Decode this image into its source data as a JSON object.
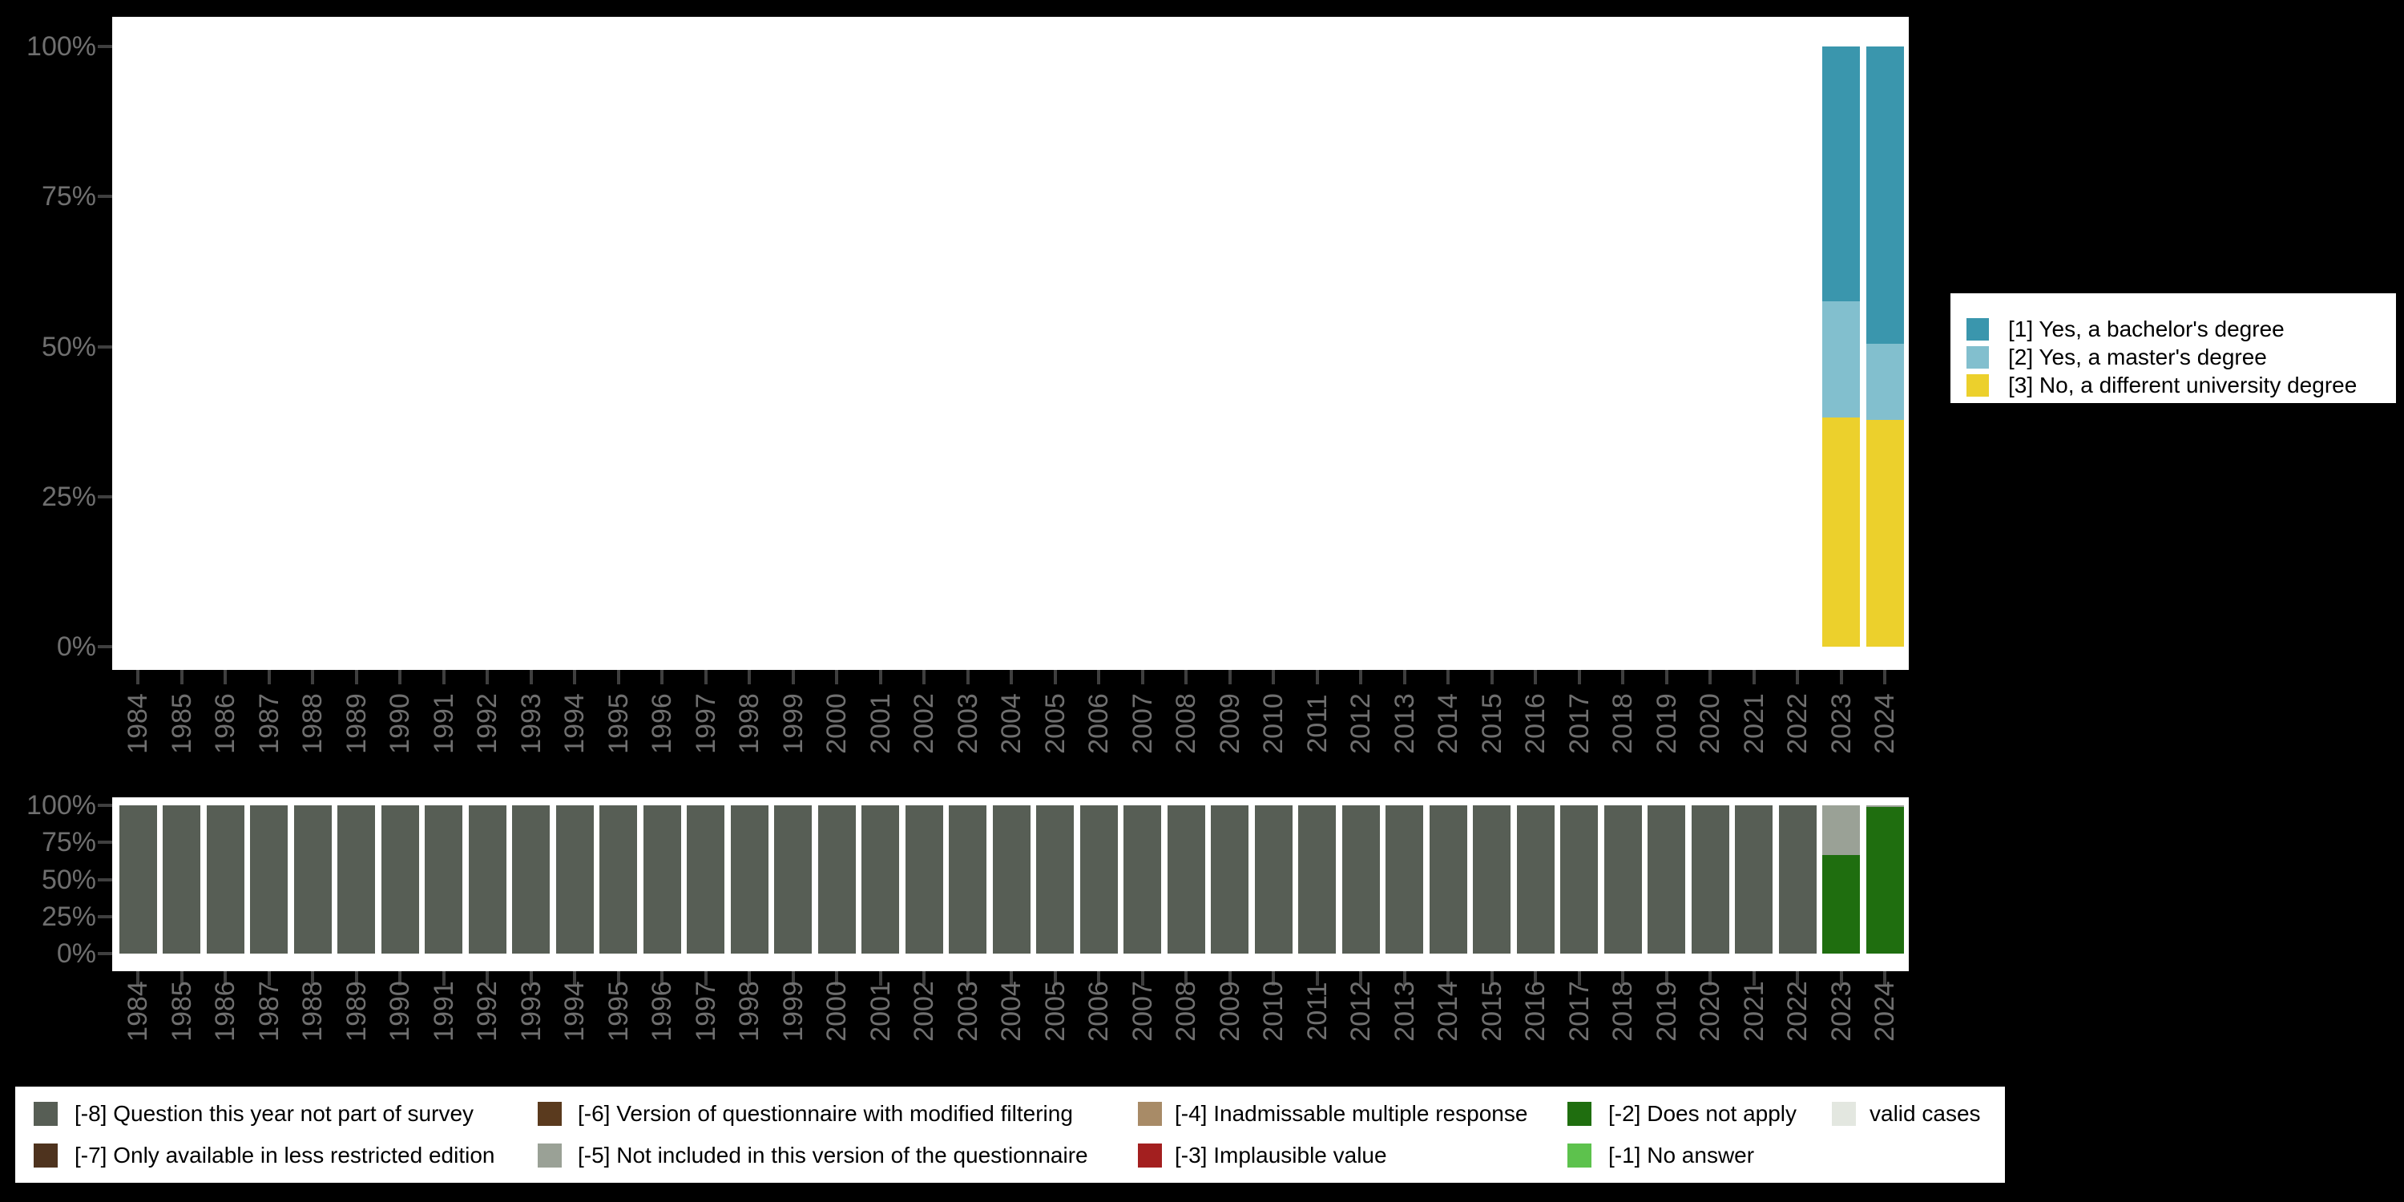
{
  "canvas": {
    "background": "#000000",
    "plot_background": "#ffffff"
  },
  "axis": {
    "tick_label_color": "#6f6f6f",
    "tick_mark_color": "#3f3f3f",
    "x_labels_rotated_degrees": -90
  },
  "chart_data": [
    {
      "id": "answer-distribution",
      "type": "bar",
      "stacked": true,
      "title": "",
      "xlabel": "",
      "ylabel": "",
      "ylim": [
        0,
        100
      ],
      "yticks": [
        "0%",
        "25%",
        "50%",
        "75%",
        "100%"
      ],
      "grid": false,
      "legend_position": "right",
      "categories": [
        "1984",
        "1985",
        "1986",
        "1987",
        "1988",
        "1989",
        "1990",
        "1991",
        "1992",
        "1993",
        "1994",
        "1995",
        "1996",
        "1997",
        "1998",
        "1999",
        "2000",
        "2001",
        "2002",
        "2003",
        "2004",
        "2005",
        "2006",
        "2007",
        "2008",
        "2009",
        "2010",
        "2011",
        "2012",
        "2013",
        "2014",
        "2015",
        "2016",
        "2017",
        "2018",
        "2019",
        "2020",
        "2021",
        "2022",
        "2023",
        "2024"
      ],
      "series": [
        {
          "name": "[1] Yes, a bachelor's degree",
          "color": "#3a96ad",
          "values": [
            0,
            0,
            0,
            0,
            0,
            0,
            0,
            0,
            0,
            0,
            0,
            0,
            0,
            0,
            0,
            0,
            0,
            0,
            0,
            0,
            0,
            0,
            0,
            0,
            0,
            0,
            0,
            0,
            0,
            0,
            0,
            0,
            0,
            0,
            0,
            0,
            0,
            0,
            0,
            42.4,
            49.5
          ]
        },
        {
          "name": "[2] Yes, a master's degree",
          "color": "#82bfce",
          "values": [
            0,
            0,
            0,
            0,
            0,
            0,
            0,
            0,
            0,
            0,
            0,
            0,
            0,
            0,
            0,
            0,
            0,
            0,
            0,
            0,
            0,
            0,
            0,
            0,
            0,
            0,
            0,
            0,
            0,
            0,
            0,
            0,
            0,
            0,
            0,
            0,
            0,
            0,
            0,
            19.4,
            12.7
          ]
        },
        {
          "name": "[3] No, a different university degree",
          "color": "#ecd02c",
          "values": [
            0,
            0,
            0,
            0,
            0,
            0,
            0,
            0,
            0,
            0,
            0,
            0,
            0,
            0,
            0,
            0,
            0,
            0,
            0,
            0,
            0,
            0,
            0,
            0,
            0,
            0,
            0,
            0,
            0,
            0,
            0,
            0,
            0,
            0,
            0,
            0,
            0,
            0,
            0,
            38.2,
            37.8
          ]
        }
      ]
    },
    {
      "id": "missing-values",
      "type": "bar",
      "stacked": true,
      "title": "",
      "xlabel": "",
      "ylabel": "",
      "ylim": [
        0,
        100
      ],
      "yticks": [
        "0%",
        "25%",
        "50%",
        "75%",
        "100%"
      ],
      "grid": false,
      "legend_position": "bottom",
      "categories": [
        "1984",
        "1985",
        "1986",
        "1987",
        "1988",
        "1989",
        "1990",
        "1991",
        "1992",
        "1993",
        "1994",
        "1995",
        "1996",
        "1997",
        "1998",
        "1999",
        "2000",
        "2001",
        "2002",
        "2003",
        "2004",
        "2005",
        "2006",
        "2007",
        "2008",
        "2009",
        "2010",
        "2011",
        "2012",
        "2013",
        "2014",
        "2015",
        "2016",
        "2017",
        "2018",
        "2019",
        "2020",
        "2021",
        "2022",
        "2023",
        "2024"
      ],
      "series": [
        {
          "name": "[-5] Not included in this version of the questionnaire",
          "color": "#9aa196",
          "values": [
            0,
            0,
            0,
            0,
            0,
            0,
            0,
            0,
            0,
            0,
            0,
            0,
            0,
            0,
            0,
            0,
            0,
            0,
            0,
            0,
            0,
            0,
            0,
            0,
            0,
            0,
            0,
            0,
            0,
            0,
            0,
            0,
            0,
            0,
            0,
            0,
            0,
            0,
            0,
            33.7,
            1.1
          ]
        },
        {
          "name": "[-8] Question this year not part of survey",
          "color": "#575e55",
          "values": [
            100,
            100,
            100,
            100,
            100,
            100,
            100,
            100,
            100,
            100,
            100,
            100,
            100,
            100,
            100,
            100,
            100,
            100,
            100,
            100,
            100,
            100,
            100,
            100,
            100,
            100,
            100,
            100,
            100,
            100,
            100,
            100,
            100,
            100,
            100,
            100,
            100,
            100,
            100,
            0,
            0
          ]
        },
        {
          "name": "[-2] Does not apply",
          "color": "#1f6e0f",
          "values": [
            0,
            0,
            0,
            0,
            0,
            0,
            0,
            0,
            0,
            0,
            0,
            0,
            0,
            0,
            0,
            0,
            0,
            0,
            0,
            0,
            0,
            0,
            0,
            0,
            0,
            0,
            0,
            0,
            0,
            0,
            0,
            0,
            0,
            0,
            0,
            0,
            0,
            0,
            0,
            66.3,
            98.9
          ]
        }
      ]
    }
  ],
  "legend_top": {
    "items": [
      {
        "label": "[1] Yes, a bachelor's degree",
        "color": "#3a96ad"
      },
      {
        "label": "[2] Yes, a master's degree",
        "color": "#82bfce"
      },
      {
        "label": "[3] No, a different university degree",
        "color": "#ecd02c"
      }
    ]
  },
  "legend_bottom": {
    "columns": [
      [
        {
          "label": "[-8] Question this year not part of survey",
          "color": "#575e55"
        },
        {
          "label": "[-7] Only available in less restricted edition",
          "color": "#4e331e"
        }
      ],
      [
        {
          "label": "[-6] Version of questionnaire with modified filtering",
          "color": "#5a3a1e"
        },
        {
          "label": "[-5] Not included in this version of the questionnaire",
          "color": "#9aa196"
        }
      ],
      [
        {
          "label": "[-4] Inadmissable multiple response",
          "color": "#a88b67"
        },
        {
          "label": "[-3] Implausible value",
          "color": "#a31f1f"
        }
      ],
      [
        {
          "label": "[-2] Does not apply",
          "color": "#1f6e0f"
        },
        {
          "label": "[-1] No answer",
          "color": "#5dc24d"
        }
      ],
      [
        {
          "label": "valid cases",
          "color": "#e3e7e0"
        }
      ]
    ]
  }
}
